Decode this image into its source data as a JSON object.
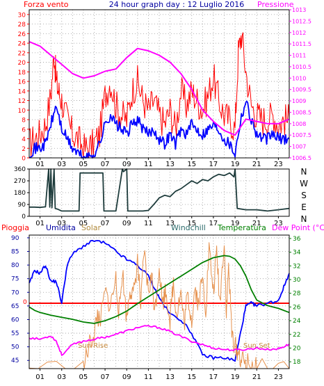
{
  "chart_data": [
    {
      "id": "wind-panel",
      "type": "line",
      "title": "24 hour graph day : 12 Luglio 2016",
      "left_label": "Forza vento",
      "right_label": "Pressione",
      "x_ticks": [
        "01",
        "03",
        "05",
        "07",
        "09",
        "11",
        "13",
        "15",
        "17",
        "19",
        "21",
        "23"
      ],
      "xlim": [
        0,
        24
      ],
      "y_left_ticks": [
        0,
        2,
        4,
        6,
        8,
        10,
        12,
        14,
        16,
        18,
        20,
        22,
        24,
        26,
        28,
        30
      ],
      "y_left_lim": [
        0,
        31
      ],
      "y_right_ticks": [
        "1006.5",
        "1007",
        "1007.5",
        "1008",
        "1008.5",
        "1009",
        "1009.5",
        "1010",
        "1010.5",
        "1011",
        "1011.5",
        "1012",
        "1012.5",
        "1013"
      ],
      "y_right_lim": [
        1006.5,
        1013
      ],
      "series": [
        {
          "color": "#ff0000",
          "axis": "left",
          "kind": "gust",
          "x": [
            0.0,
            0.5,
            1.0,
            1.5,
            2.0,
            2.3,
            2.5,
            2.7,
            3.0,
            3.5,
            4.0,
            4.5,
            5.0,
            5.5,
            6.0,
            6.5,
            7.0,
            7.5,
            8.0,
            8.5,
            9.0,
            9.5,
            10.0,
            10.5,
            11.0,
            11.5,
            12.0,
            12.5,
            13.0,
            13.5,
            14.0,
            14.5,
            15.0,
            15.5,
            16.0,
            16.5,
            17.0,
            17.5,
            18.0,
            18.5,
            19.0,
            19.3,
            19.6,
            20.0,
            20.5,
            21.0,
            21.5,
            22.0,
            22.5,
            23.0,
            23.5,
            24.0
          ],
          "y": [
            3,
            4,
            5,
            7,
            13,
            22,
            16,
            14,
            12,
            8,
            5,
            4,
            2,
            2,
            3,
            5,
            13,
            16,
            11,
            9,
            8,
            14,
            16,
            12,
            10,
            12,
            9,
            7,
            10,
            6,
            14,
            11,
            14,
            12,
            10,
            13,
            17,
            12,
            9,
            8,
            6,
            22,
            26,
            18,
            11,
            9,
            8,
            8,
            9,
            7,
            8,
            8
          ]
        },
        {
          "color": "#0000ff",
          "axis": "left",
          "kind": "average",
          "x": [
            0.0,
            0.5,
            1.0,
            1.5,
            2.0,
            2.5,
            3.0,
            3.5,
            4.0,
            4.5,
            5.0,
            5.5,
            6.0,
            6.5,
            7.0,
            7.5,
            8.0,
            8.5,
            9.0,
            9.5,
            10.0,
            10.5,
            11.0,
            11.5,
            12.0,
            12.5,
            13.0,
            13.5,
            14.0,
            14.5,
            15.0,
            15.5,
            16.0,
            16.5,
            17.0,
            17.5,
            18.0,
            18.5,
            19.0,
            19.5,
            20.0,
            20.5,
            21.0,
            21.5,
            22.0,
            22.5,
            23.0,
            23.5,
            24.0
          ],
          "y": [
            1,
            2,
            2,
            3,
            7,
            11,
            6,
            4,
            2,
            1,
            0,
            0,
            1,
            3,
            7,
            9,
            7,
            6,
            5,
            7,
            8,
            6,
            5,
            6,
            4,
            3,
            5,
            3,
            6,
            5,
            7,
            6,
            5,
            6,
            7,
            6,
            4,
            3,
            1,
            8,
            12,
            8,
            5,
            4,
            4,
            5,
            4,
            4,
            4
          ]
        },
        {
          "color": "#ff00ff",
          "axis": "right",
          "kind": "pressure",
          "x": [
            0.0,
            1.0,
            2.0,
            3.0,
            4.0,
            5.0,
            6.0,
            7.0,
            8.0,
            9.0,
            10.0,
            11.0,
            12.0,
            13.0,
            14.0,
            15.0,
            16.0,
            17.0,
            18.0,
            19.0,
            20.0,
            21.0,
            22.0,
            23.0,
            24.0
          ],
          "y": [
            1011.6,
            1011.4,
            1011.0,
            1010.6,
            1010.2,
            1010.0,
            1010.1,
            1010.3,
            1010.4,
            1010.9,
            1011.3,
            1011.2,
            1011.0,
            1010.7,
            1010.2,
            1009.5,
            1008.6,
            1008.1,
            1007.7,
            1007.5,
            1008.2,
            1008.1,
            1008.0,
            1008.0,
            1008.2
          ]
        }
      ]
    },
    {
      "id": "direction-panel",
      "type": "line",
      "x_ticks": [
        "01",
        "03",
        "05",
        "07",
        "09",
        "11",
        "13",
        "15",
        "17",
        "19",
        "21",
        "23"
      ],
      "xlim": [
        0,
        24
      ],
      "y_ticks": [
        0,
        90,
        180,
        270,
        360
      ],
      "ylim": [
        0,
        360
      ],
      "right_labels": [
        "N",
        "W",
        "S",
        "E",
        "N"
      ],
      "series": [
        {
          "color": "#1e3c3c",
          "kind": "direction",
          "x": [
            0.0,
            0.5,
            1.0,
            1.5,
            1.8,
            1.9,
            2.0,
            2.1,
            2.3,
            2.4,
            2.6,
            3.0,
            4.0,
            4.6,
            4.7,
            5.0,
            6.0,
            6.8,
            6.9,
            7.5,
            8.0,
            8.6,
            8.7,
            9.0,
            9.1,
            10.0,
            10.5,
            11.0,
            11.5,
            12.0,
            12.5,
            13.0,
            13.5,
            14.0,
            14.5,
            15.0,
            15.5,
            16.0,
            16.5,
            17.0,
            17.5,
            18.0,
            18.5,
            18.9,
            19.0,
            19.2,
            20.0,
            21.0,
            22.0,
            23.0,
            23.5,
            24.0
          ],
          "y": [
            70,
            70,
            68,
            72,
            360,
            70,
            360,
            65,
            360,
            60,
            55,
            40,
            40,
            40,
            330,
            330,
            330,
            330,
            40,
            40,
            40,
            360,
            340,
            360,
            40,
            40,
            40,
            45,
            90,
            140,
            160,
            150,
            190,
            210,
            240,
            270,
            250,
            280,
            270,
            300,
            320,
            310,
            330,
            300,
            360,
            60,
            50,
            50,
            40,
            50,
            55,
            60
          ]
        }
      ]
    },
    {
      "id": "thermo-panel",
      "type": "line",
      "legend": [
        "Pioggia",
        "Umidita",
        "Solar",
        "Windchill",
        "Temperatura",
        "Dew Point (°C)"
      ],
      "x_ticks": [
        "01",
        "03",
        "05",
        "07",
        "09",
        "11",
        "13",
        "15",
        "17",
        "19",
        "21",
        "23"
      ],
      "xlim": [
        0,
        24
      ],
      "y_left_ticks": [
        45,
        50,
        55,
        60,
        65,
        70,
        75,
        80,
        85,
        90
      ],
      "y_left_lim": [
        42,
        91
      ],
      "y_right_ticks": [
        18,
        20,
        22,
        24,
        26,
        28,
        30,
        32,
        34,
        36
      ],
      "y_right_lim": [
        17,
        36.5
      ],
      "rain_label": "0",
      "rain_value": 0,
      "annotations": [
        "Sun Rise",
        "Sun Set"
      ],
      "series": [
        {
          "name": "Pioggia",
          "color": "#ff0000",
          "axis": "left",
          "x": [
            0,
            24
          ],
          "y": [
            66,
            66
          ]
        },
        {
          "name": "Umidita",
          "color": "#0000ff",
          "axis": "left",
          "x": [
            0.0,
            0.5,
            1.0,
            1.5,
            2.0,
            2.5,
            3.0,
            3.5,
            4.0,
            5.0,
            6.0,
            7.0,
            8.0,
            9.0,
            10.0,
            11.0,
            11.5,
            12.0,
            13.0,
            14.0,
            15.0,
            16.0,
            17.0,
            18.0,
            19.0,
            19.5,
            20.0,
            20.5,
            21.0,
            22.0,
            23.0,
            23.5,
            24.0
          ],
          "y": [
            73,
            78,
            77,
            80,
            74,
            74,
            66,
            80,
            84,
            87,
            89,
            88,
            85,
            82,
            80,
            76,
            72,
            68,
            62,
            60,
            55,
            47,
            46,
            46,
            45,
            55,
            65,
            66,
            65,
            66,
            67,
            72,
            77
          ]
        },
        {
          "name": "Solar",
          "color": "#e6914d",
          "axis": "left",
          "x": [
            0.0,
            5.0,
            5.5,
            6.0,
            6.3,
            6.5,
            7.0,
            7.5,
            8.0,
            8.3,
            8.6,
            9.0,
            9.3,
            9.6,
            10.0,
            10.3,
            10.6,
            11.0,
            11.3,
            11.6,
            12.0,
            12.3,
            12.6,
            13.0,
            13.3,
            13.6,
            14.0,
            14.3,
            14.6,
            15.0,
            15.3,
            15.6,
            16.0,
            16.3,
            16.6,
            17.0,
            17.3,
            17.6,
            18.0,
            18.2,
            18.4,
            18.7,
            19.0,
            19.3,
            19.6,
            20.0,
            20.5,
            21.0,
            24.0
          ],
          "y": [
            42,
            42,
            50,
            55,
            62,
            58,
            70,
            65,
            75,
            62,
            78,
            60,
            72,
            68,
            82,
            64,
            85,
            70,
            76,
            63,
            80,
            66,
            71,
            60,
            74,
            62,
            70,
            58,
            69,
            60,
            72,
            66,
            75,
            64,
            86,
            70,
            85,
            66,
            90,
            62,
            80,
            55,
            50,
            48,
            45,
            44,
            43,
            42,
            42
          ]
        },
        {
          "name": "Windchill",
          "color": "#ff00ff",
          "axis": "right",
          "x": [
            0.0,
            1.0,
            2.0,
            2.5,
            3.0,
            4.0,
            5.0,
            6.0,
            7.0,
            8.0,
            9.0,
            10.0,
            11.0,
            12.0,
            13.0,
            14.0,
            15.0,
            16.0,
            17.0,
            18.0,
            19.0,
            20.0,
            21.0,
            22.0,
            23.0,
            23.5,
            24.0
          ],
          "y": [
            21.5,
            21.3,
            21.8,
            21.0,
            19.0,
            20.5,
            21.0,
            21.3,
            21.6,
            22.0,
            22.5,
            23.0,
            23.2,
            23.0,
            22.4,
            21.7,
            21.0,
            20.5,
            20.0,
            19.8,
            19.7,
            19.8,
            20.0,
            19.8,
            19.9,
            20.2,
            20.6
          ]
        },
        {
          "name": "Temperatura",
          "color": "#008000",
          "axis": "right",
          "x": [
            0.0,
            0.5,
            1.0,
            2.0,
            3.0,
            4.0,
            5.0,
            6.0,
            7.0,
            8.0,
            9.0,
            10.0,
            11.0,
            12.0,
            13.0,
            14.0,
            15.0,
            16.0,
            17.0,
            18.0,
            18.5,
            19.0,
            19.5,
            20.0,
            20.5,
            21.0,
            22.0,
            23.0,
            24.0
          ],
          "y": [
            26.0,
            25.5,
            25.2,
            24.8,
            24.5,
            24.2,
            23.8,
            23.6,
            24.0,
            24.6,
            25.4,
            26.5,
            27.5,
            28.5,
            29.5,
            30.5,
            31.5,
            32.5,
            33.2,
            33.5,
            33.4,
            33.0,
            32.0,
            30.5,
            28.5,
            27.0,
            26.2,
            25.8,
            25.2
          ]
        }
      ]
    }
  ]
}
